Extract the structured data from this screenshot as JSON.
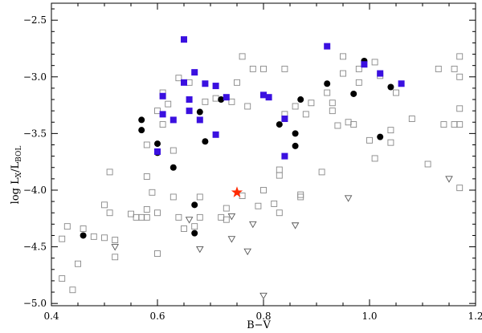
{
  "chart_data": {
    "type": "scatter",
    "xlabel": "B−V",
    "ylabel": {
      "main": "log L",
      "sub1": "X",
      "mid": "/L",
      "sub2": "BOL"
    },
    "xlim": [
      0.4,
      1.2
    ],
    "ylim": [
      -5.02,
      -2.35
    ],
    "x_ticks": [
      "0.4",
      "0.6",
      "0.8",
      "1.0",
      "1.2"
    ],
    "y_ticks": [
      "−2.5",
      "−3.0",
      "−3.5",
      "−4.0",
      "−4.5",
      "−5.0"
    ],
    "grid": false,
    "series": [
      {
        "marker": "open-square",
        "color": "#888888",
        "points": [
          [
            0.42,
            -4.43
          ],
          [
            0.42,
            -4.78
          ],
          [
            0.43,
            -4.32
          ],
          [
            0.44,
            -4.88
          ],
          [
            0.45,
            -4.65
          ],
          [
            0.46,
            -4.34
          ],
          [
            0.48,
            -4.41
          ],
          [
            0.5,
            -4.13
          ],
          [
            0.5,
            -4.42
          ],
          [
            0.51,
            -3.84
          ],
          [
            0.51,
            -4.2
          ],
          [
            0.52,
            -4.44
          ],
          [
            0.52,
            -4.59
          ],
          [
            0.55,
            -4.21
          ],
          [
            0.56,
            -4.24
          ],
          [
            0.57,
            -4.24
          ],
          [
            0.58,
            -3.88
          ],
          [
            0.58,
            -4.17
          ],
          [
            0.58,
            -4.24
          ],
          [
            0.58,
            -3.6
          ],
          [
            0.59,
            -4.02
          ],
          [
            0.6,
            -4.2
          ],
          [
            0.6,
            -4.56
          ],
          [
            0.6,
            -3.3
          ],
          [
            0.61,
            -3.14
          ],
          [
            0.61,
            -3.42
          ],
          [
            0.62,
            -3.24
          ],
          [
            0.63,
            -3.65
          ],
          [
            0.63,
            -4.06
          ],
          [
            0.64,
            -3.01
          ],
          [
            0.64,
            -4.24
          ],
          [
            0.65,
            -4.34
          ],
          [
            0.66,
            -3.05
          ],
          [
            0.67,
            -4.32
          ],
          [
            0.68,
            -4.24
          ],
          [
            0.68,
            -4.06
          ],
          [
            0.69,
            -3.22
          ],
          [
            0.71,
            -3.19
          ],
          [
            0.72,
            -4.24
          ],
          [
            0.73,
            -4.16
          ],
          [
            0.73,
            -4.26
          ],
          [
            0.74,
            -3.22
          ],
          [
            0.75,
            -3.05
          ],
          [
            0.76,
            -2.82
          ],
          [
            0.76,
            -4.05
          ],
          [
            0.77,
            -3.26
          ],
          [
            0.78,
            -2.93
          ],
          [
            0.79,
            -4.14
          ],
          [
            0.8,
            -2.93
          ],
          [
            0.8,
            -4.0
          ],
          [
            0.82,
            -4.12
          ],
          [
            0.83,
            -3.82
          ],
          [
            0.83,
            -3.87
          ],
          [
            0.83,
            -4.2
          ],
          [
            0.84,
            -2.93
          ],
          [
            0.84,
            -3.33
          ],
          [
            0.86,
            -3.26
          ],
          [
            0.87,
            -4.06
          ],
          [
            0.87,
            -4.04
          ],
          [
            0.88,
            -3.33
          ],
          [
            0.89,
            -3.23
          ],
          [
            0.91,
            -3.84
          ],
          [
            0.92,
            -3.14
          ],
          [
            0.93,
            -3.23
          ],
          [
            0.93,
            -3.3
          ],
          [
            0.94,
            -3.43
          ],
          [
            0.95,
            -2.82
          ],
          [
            0.95,
            -2.97
          ],
          [
            0.96,
            -3.4
          ],
          [
            0.97,
            -3.42
          ],
          [
            0.98,
            -2.93
          ],
          [
            0.98,
            -3.05
          ],
          [
            1.0,
            -3.56
          ],
          [
            1.01,
            -2.87
          ],
          [
            1.01,
            -3.72
          ],
          [
            1.02,
            -2.99
          ],
          [
            1.04,
            -3.47
          ],
          [
            1.04,
            -3.58
          ],
          [
            1.05,
            -3.14
          ],
          [
            1.08,
            -3.37
          ],
          [
            1.11,
            -3.77
          ],
          [
            1.13,
            -2.93
          ],
          [
            1.14,
            -3.42
          ],
          [
            1.16,
            -2.93
          ],
          [
            1.16,
            -3.42
          ],
          [
            1.17,
            -2.82
          ],
          [
            1.17,
            -3.0
          ],
          [
            1.17,
            -3.28
          ],
          [
            1.17,
            -3.42
          ],
          [
            1.17,
            -3.98
          ]
        ]
      },
      {
        "marker": "open-triangle-down",
        "color": "#555555",
        "points": [
          [
            0.52,
            -4.5
          ],
          [
            0.66,
            -4.26
          ],
          [
            0.68,
            -4.52
          ],
          [
            0.74,
            -4.23
          ],
          [
            0.74,
            -4.43
          ],
          [
            0.77,
            -4.54
          ],
          [
            0.78,
            -4.3
          ],
          [
            0.8,
            -4.93
          ],
          [
            0.86,
            -4.31
          ],
          [
            0.96,
            -4.07
          ],
          [
            1.15,
            -3.9
          ]
        ]
      },
      {
        "marker": "filled-circle",
        "color": "#000000",
        "points": [
          [
            0.46,
            -4.4
          ],
          [
            0.57,
            -3.38
          ],
          [
            0.57,
            -3.47
          ],
          [
            0.6,
            -3.59
          ],
          [
            0.6,
            -3.67
          ],
          [
            0.63,
            -3.8
          ],
          [
            0.67,
            -4.13
          ],
          [
            0.67,
            -4.38
          ],
          [
            0.68,
            -3.31
          ],
          [
            0.69,
            -3.57
          ],
          [
            0.72,
            -3.2
          ],
          [
            0.83,
            -3.42
          ],
          [
            0.86,
            -3.5
          ],
          [
            0.86,
            -3.61
          ],
          [
            0.87,
            -3.2
          ],
          [
            0.92,
            -3.06
          ],
          [
            0.97,
            -3.15
          ],
          [
            0.99,
            -2.86
          ],
          [
            1.02,
            -3.53
          ],
          [
            1.04,
            -3.09
          ]
        ]
      },
      {
        "marker": "filled-square",
        "color": "#3a10e0",
        "points": [
          [
            0.6,
            -3.66
          ],
          [
            0.61,
            -3.17
          ],
          [
            0.61,
            -3.33
          ],
          [
            0.63,
            -3.38
          ],
          [
            0.65,
            -2.67
          ],
          [
            0.65,
            -3.05
          ],
          [
            0.66,
            -3.2
          ],
          [
            0.66,
            -3.3
          ],
          [
            0.67,
            -2.96
          ],
          [
            0.68,
            -3.38
          ],
          [
            0.69,
            -3.06
          ],
          [
            0.71,
            -3.08
          ],
          [
            0.71,
            -3.51
          ],
          [
            0.73,
            -3.18
          ],
          [
            0.8,
            -3.16
          ],
          [
            0.81,
            -3.18
          ],
          [
            0.84,
            -3.37
          ],
          [
            0.84,
            -3.7
          ],
          [
            0.92,
            -2.73
          ],
          [
            0.99,
            -2.89
          ],
          [
            1.02,
            -2.97
          ],
          [
            1.06,
            -3.06
          ]
        ]
      },
      {
        "marker": "star",
        "color": "#ff2a00",
        "points": [
          [
            0.75,
            -4.02
          ]
        ]
      }
    ]
  }
}
